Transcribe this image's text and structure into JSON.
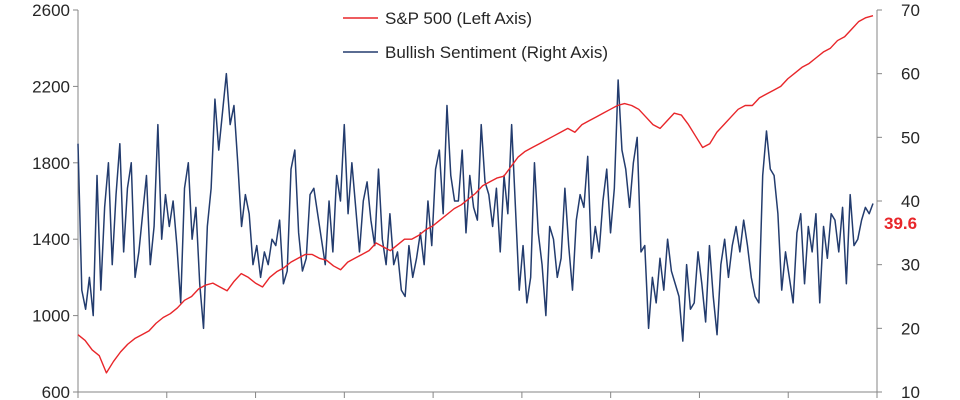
{
  "chart_data": {
    "type": "line",
    "title": "",
    "xlabel": "",
    "y_left": {
      "ticks": [
        "600",
        "1000",
        "1400",
        "1800",
        "2200",
        "2600"
      ],
      "range": [
        600,
        2600
      ]
    },
    "y_right": {
      "ticks": [
        "10",
        "20",
        "30",
        "40",
        "50",
        "60",
        "70"
      ],
      "range": [
        10,
        70
      ]
    },
    "legend_placement": "top-center",
    "series": [
      {
        "name": "S&P 500 (Left Axis)",
        "axis": "left",
        "color": "#e8262a",
        "values": [
          900,
          870,
          820,
          790,
          700,
          760,
          810,
          850,
          880,
          900,
          920,
          960,
          990,
          1010,
          1040,
          1080,
          1100,
          1140,
          1160,
          1170,
          1150,
          1130,
          1180,
          1220,
          1200,
          1170,
          1150,
          1200,
          1230,
          1250,
          1280,
          1300,
          1320,
          1320,
          1300,
          1290,
          1260,
          1240,
          1280,
          1300,
          1320,
          1340,
          1380,
          1360,
          1340,
          1370,
          1400,
          1400,
          1420,
          1450,
          1470,
          1500,
          1530,
          1560,
          1580,
          1610,
          1640,
          1680,
          1700,
          1720,
          1730,
          1780,
          1830,
          1860,
          1880,
          1900,
          1920,
          1940,
          1960,
          1980,
          1960,
          2000,
          2020,
          2040,
          2060,
          2080,
          2100,
          2110,
          2100,
          2080,
          2040,
          2000,
          1980,
          2020,
          2060,
          2050,
          2000,
          1940,
          1880,
          1900,
          1960,
          2000,
          2040,
          2080,
          2100,
          2100,
          2140,
          2160,
          2180,
          2200,
          2240,
          2270,
          2300,
          2320,
          2350,
          2380,
          2400,
          2440,
          2460,
          2500,
          2540,
          2560,
          2570
        ]
      },
      {
        "name": "Bullish Sentiment (Right Axis)",
        "axis": "right",
        "color": "#233c6e",
        "values": [
          49,
          26,
          23,
          28,
          22,
          44,
          26,
          39,
          46,
          30,
          41,
          49,
          32,
          42,
          46,
          28,
          32,
          38,
          44,
          30,
          36,
          52,
          34,
          41,
          36,
          40,
          33,
          24,
          42,
          46,
          34,
          39,
          27,
          20,
          36,
          42,
          56,
          48,
          54,
          60,
          52,
          55,
          46,
          36,
          41,
          38,
          30,
          33,
          28,
          32,
          30,
          34,
          33,
          37,
          27,
          29,
          45,
          48,
          35,
          29,
          31,
          41,
          42,
          38,
          34,
          30,
          40,
          32,
          44,
          40,
          52,
          38,
          46,
          39,
          32,
          40,
          43,
          37,
          33,
          45,
          34,
          30,
          38,
          30,
          32,
          26,
          25,
          33,
          28,
          31,
          35,
          30,
          40,
          33,
          45,
          48,
          38,
          55,
          44,
          40,
          40,
          48,
          35,
          44,
          39,
          37,
          52,
          43,
          41,
          36,
          42,
          32,
          44,
          38,
          52,
          39,
          26,
          33,
          24,
          28,
          46,
          35,
          30,
          22,
          36,
          34,
          28,
          31,
          42,
          33,
          26,
          37,
          41,
          39,
          47,
          31,
          36,
          32,
          40,
          45,
          35,
          42,
          59,
          48,
          45,
          39,
          46,
          50,
          32,
          33,
          20,
          28,
          24,
          31,
          26,
          34,
          29,
          27,
          25,
          18,
          30,
          23,
          24,
          32,
          27,
          21,
          33,
          25,
          19,
          30,
          34,
          28,
          33,
          36,
          32,
          37,
          33,
          28,
          25,
          24,
          44,
          51,
          45,
          44,
          38,
          26,
          32,
          28,
          24,
          35,
          38,
          27,
          36,
          32,
          38,
          24,
          36,
          31,
          38,
          37,
          32,
          39,
          27,
          41,
          33,
          34,
          37,
          39,
          38,
          39.6
        ],
        "last_value_label": "39.6"
      }
    ]
  }
}
